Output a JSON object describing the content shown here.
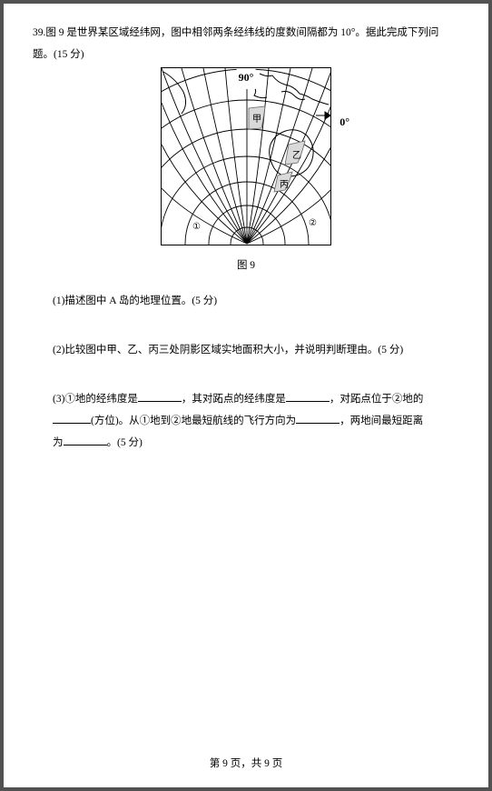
{
  "question": {
    "number": "39.",
    "intro_a": "图 9 是世界某区域经纬网，图中相邻两条经纬线的度数间隔都为 10°。据此完成下列问",
    "intro_b": "题。(15 分)",
    "part1": "(1)描述图中 A 岛的地理位置。(5 分)",
    "part2": "(2)比较图中甲、乙、丙三处阴影区域实地面积大小，并说明判断理由。(5 分)",
    "part3": {
      "seg1": "(3)①地的经纬度是",
      "seg2": "，其对跖点的经纬度是",
      "seg3": "，对跖点位于②地的",
      "seg4": "(方位)。从①地到②地最短航线的飞行方向为",
      "seg5": "，两地间最短距离",
      "seg6": "为",
      "seg7": "。(5 分)"
    }
  },
  "figure": {
    "top_label": "90°",
    "right_label": "0°",
    "markers": {
      "jia": "甲",
      "yi": "乙",
      "bing": "丙",
      "one": "①",
      "two": "②"
    },
    "caption": "图 9",
    "colors": {
      "line": "#000000",
      "shade_bg": "#d9d9d9",
      "shade_border": "#666666"
    }
  },
  "footer": "第 9 页，共 9 页",
  "blank_widths": {
    "w1": 48,
    "w2": 48,
    "w3": 42,
    "w4": 48,
    "w5": 48
  }
}
